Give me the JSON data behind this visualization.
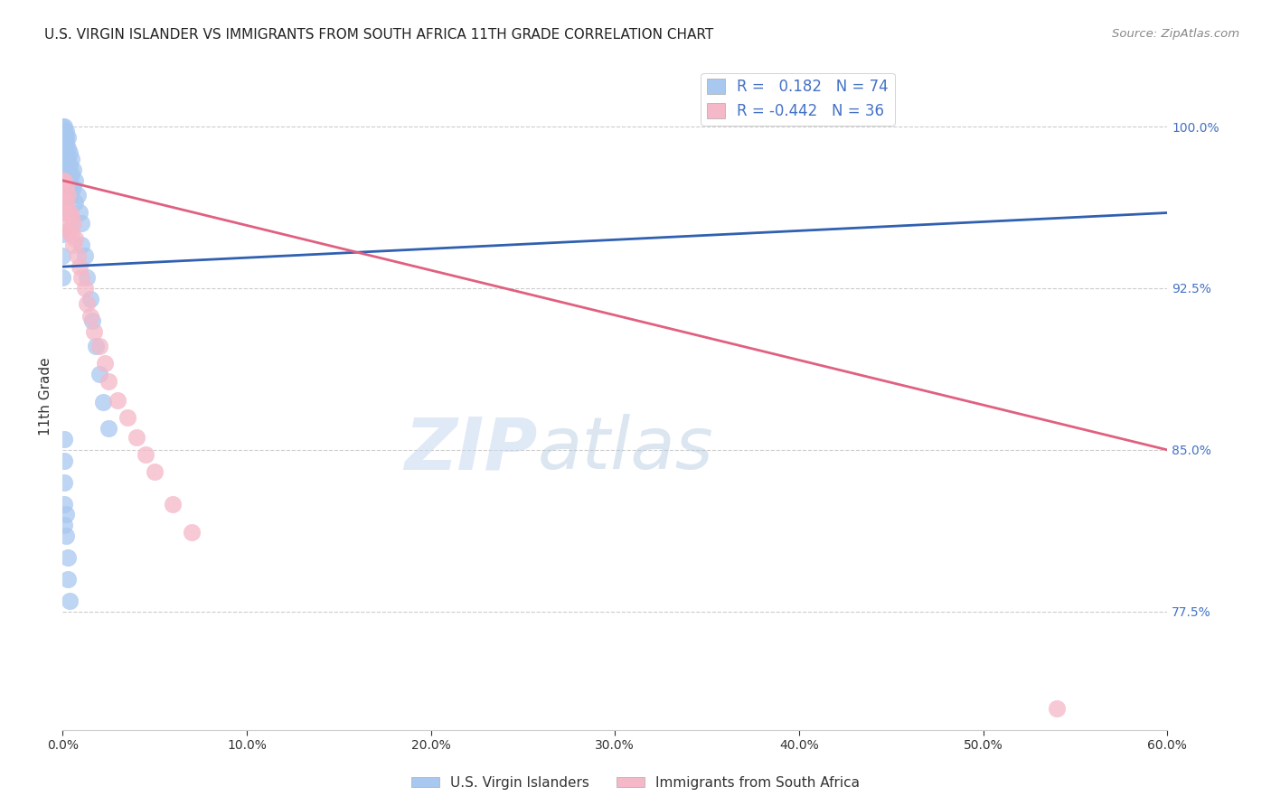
{
  "title": "U.S. VIRGIN ISLANDER VS IMMIGRANTS FROM SOUTH AFRICA 11TH GRADE CORRELATION CHART",
  "source": "Source: ZipAtlas.com",
  "ylabel": "11th Grade",
  "ylabel_tick_vals": [
    0.775,
    0.85,
    0.925,
    1.0
  ],
  "xmin": 0.0,
  "xmax": 0.6,
  "ymin": 0.72,
  "ymax": 1.03,
  "blue_color": "#a8c8f0",
  "pink_color": "#f5b8c8",
  "blue_line_color": "#3060b0",
  "pink_line_color": "#e06080",
  "watermark_zip": "ZIP",
  "watermark_atlas": "atlas",
  "blue_line_x": [
    0.0,
    0.6
  ],
  "blue_line_y": [
    0.935,
    0.96
  ],
  "pink_line_x": [
    0.0,
    0.6
  ],
  "pink_line_y": [
    0.975,
    0.85
  ],
  "blue_scatter_x": [
    0.0,
    0.0,
    0.0,
    0.0,
    0.0,
    0.0,
    0.0,
    0.001,
    0.001,
    0.001,
    0.001,
    0.001,
    0.001,
    0.001,
    0.001,
    0.001,
    0.001,
    0.001,
    0.001,
    0.001,
    0.001,
    0.001,
    0.002,
    0.002,
    0.002,
    0.002,
    0.002,
    0.002,
    0.002,
    0.002,
    0.003,
    0.003,
    0.003,
    0.003,
    0.003,
    0.003,
    0.004,
    0.004,
    0.004,
    0.004,
    0.005,
    0.005,
    0.005,
    0.006,
    0.006,
    0.007,
    0.007,
    0.008,
    0.009,
    0.01,
    0.01,
    0.012,
    0.013,
    0.015,
    0.016,
    0.018,
    0.02,
    0.022,
    0.025,
    0.0,
    0.0,
    0.0,
    0.001,
    0.001,
    0.001,
    0.001,
    0.001,
    0.002,
    0.002,
    0.003,
    0.003,
    0.004
  ],
  "blue_scatter_y": [
    1.0,
    0.998,
    0.996,
    0.994,
    0.992,
    0.99,
    0.988,
    1.0,
    0.998,
    0.996,
    0.994,
    0.992,
    0.99,
    0.988,
    0.985,
    0.982,
    0.978,
    0.975,
    0.972,
    0.968,
    0.965,
    0.96,
    0.998,
    0.995,
    0.992,
    0.988,
    0.985,
    0.98,
    0.975,
    0.97,
    0.995,
    0.99,
    0.985,
    0.98,
    0.975,
    0.968,
    0.988,
    0.982,
    0.976,
    0.968,
    0.985,
    0.978,
    0.97,
    0.98,
    0.972,
    0.975,
    0.965,
    0.968,
    0.96,
    0.955,
    0.945,
    0.94,
    0.93,
    0.92,
    0.91,
    0.898,
    0.885,
    0.872,
    0.86,
    0.95,
    0.94,
    0.93,
    0.855,
    0.845,
    0.835,
    0.825,
    0.815,
    0.82,
    0.81,
    0.8,
    0.79,
    0.78
  ],
  "pink_scatter_x": [
    0.0,
    0.001,
    0.001,
    0.001,
    0.002,
    0.002,
    0.002,
    0.003,
    0.003,
    0.003,
    0.004,
    0.004,
    0.005,
    0.005,
    0.006,
    0.006,
    0.007,
    0.008,
    0.009,
    0.01,
    0.012,
    0.013,
    0.015,
    0.017,
    0.02,
    0.023,
    0.025,
    0.03,
    0.035,
    0.04,
    0.045,
    0.05,
    0.06,
    0.07,
    0.54
  ],
  "pink_scatter_y": [
    0.975,
    0.975,
    0.97,
    0.965,
    0.972,
    0.965,
    0.958,
    0.968,
    0.96,
    0.952,
    0.96,
    0.952,
    0.958,
    0.95,
    0.955,
    0.945,
    0.948,
    0.94,
    0.935,
    0.93,
    0.925,
    0.918,
    0.912,
    0.905,
    0.898,
    0.89,
    0.882,
    0.873,
    0.865,
    0.856,
    0.848,
    0.84,
    0.825,
    0.812,
    0.73
  ],
  "legend_blue_text": "R =   0.182   N = 74",
  "legend_pink_text": "R = -0.442   N = 36"
}
